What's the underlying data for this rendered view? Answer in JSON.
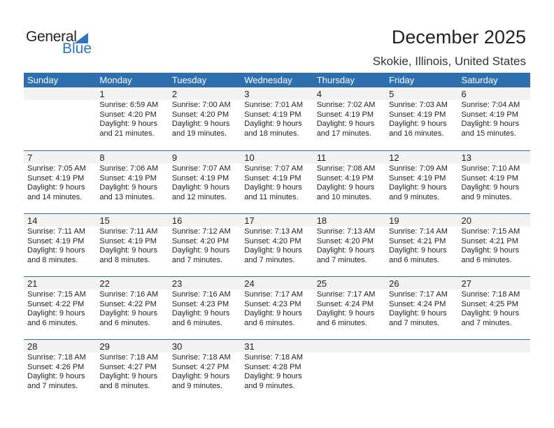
{
  "logo": {
    "text1": "General",
    "text2": "Blue",
    "color": "#2e75c4"
  },
  "title": "December 2025",
  "subtitle": "Skokie, Illinois, United States",
  "colors": {
    "header": "#2e6fb0",
    "band": "#f2f2f2"
  },
  "days_of_week": [
    "Sunday",
    "Monday",
    "Tuesday",
    "Wednesday",
    "Thursday",
    "Friday",
    "Saturday"
  ],
  "weeks": [
    [
      null,
      {
        "day": "1",
        "sunrise": "Sunrise: 6:59 AM",
        "sunset": "Sunset: 4:20 PM",
        "daylight": "Daylight: 9 hours",
        "minutes": "and 21 minutes."
      },
      {
        "day": "2",
        "sunrise": "Sunrise: 7:00 AM",
        "sunset": "Sunset: 4:20 PM",
        "daylight": "Daylight: 9 hours",
        "minutes": "and 19 minutes."
      },
      {
        "day": "3",
        "sunrise": "Sunrise: 7:01 AM",
        "sunset": "Sunset: 4:19 PM",
        "daylight": "Daylight: 9 hours",
        "minutes": "and 18 minutes."
      },
      {
        "day": "4",
        "sunrise": "Sunrise: 7:02 AM",
        "sunset": "Sunset: 4:19 PM",
        "daylight": "Daylight: 9 hours",
        "minutes": "and 17 minutes."
      },
      {
        "day": "5",
        "sunrise": "Sunrise: 7:03 AM",
        "sunset": "Sunset: 4:19 PM",
        "daylight": "Daylight: 9 hours",
        "minutes": "and 16 minutes."
      },
      {
        "day": "6",
        "sunrise": "Sunrise: 7:04 AM",
        "sunset": "Sunset: 4:19 PM",
        "daylight": "Daylight: 9 hours",
        "minutes": "and 15 minutes."
      }
    ],
    [
      {
        "day": "7",
        "sunrise": "Sunrise: 7:05 AM",
        "sunset": "Sunset: 4:19 PM",
        "daylight": "Daylight: 9 hours",
        "minutes": "and 14 minutes."
      },
      {
        "day": "8",
        "sunrise": "Sunrise: 7:06 AM",
        "sunset": "Sunset: 4:19 PM",
        "daylight": "Daylight: 9 hours",
        "minutes": "and 13 minutes."
      },
      {
        "day": "9",
        "sunrise": "Sunrise: 7:07 AM",
        "sunset": "Sunset: 4:19 PM",
        "daylight": "Daylight: 9 hours",
        "minutes": "and 12 minutes."
      },
      {
        "day": "10",
        "sunrise": "Sunrise: 7:07 AM",
        "sunset": "Sunset: 4:19 PM",
        "daylight": "Daylight: 9 hours",
        "minutes": "and 11 minutes."
      },
      {
        "day": "11",
        "sunrise": "Sunrise: 7:08 AM",
        "sunset": "Sunset: 4:19 PM",
        "daylight": "Daylight: 9 hours",
        "minutes": "and 10 minutes."
      },
      {
        "day": "12",
        "sunrise": "Sunrise: 7:09 AM",
        "sunset": "Sunset: 4:19 PM",
        "daylight": "Daylight: 9 hours",
        "minutes": "and 9 minutes."
      },
      {
        "day": "13",
        "sunrise": "Sunrise: 7:10 AM",
        "sunset": "Sunset: 4:19 PM",
        "daylight": "Daylight: 9 hours",
        "minutes": "and 9 minutes."
      }
    ],
    [
      {
        "day": "14",
        "sunrise": "Sunrise: 7:11 AM",
        "sunset": "Sunset: 4:19 PM",
        "daylight": "Daylight: 9 hours",
        "minutes": "and 8 minutes."
      },
      {
        "day": "15",
        "sunrise": "Sunrise: 7:11 AM",
        "sunset": "Sunset: 4:19 PM",
        "daylight": "Daylight: 9 hours",
        "minutes": "and 8 minutes."
      },
      {
        "day": "16",
        "sunrise": "Sunrise: 7:12 AM",
        "sunset": "Sunset: 4:20 PM",
        "daylight": "Daylight: 9 hours",
        "minutes": "and 7 minutes."
      },
      {
        "day": "17",
        "sunrise": "Sunrise: 7:13 AM",
        "sunset": "Sunset: 4:20 PM",
        "daylight": "Daylight: 9 hours",
        "minutes": "and 7 minutes."
      },
      {
        "day": "18",
        "sunrise": "Sunrise: 7:13 AM",
        "sunset": "Sunset: 4:20 PM",
        "daylight": "Daylight: 9 hours",
        "minutes": "and 7 minutes."
      },
      {
        "day": "19",
        "sunrise": "Sunrise: 7:14 AM",
        "sunset": "Sunset: 4:21 PM",
        "daylight": "Daylight: 9 hours",
        "minutes": "and 6 minutes."
      },
      {
        "day": "20",
        "sunrise": "Sunrise: 7:15 AM",
        "sunset": "Sunset: 4:21 PM",
        "daylight": "Daylight: 9 hours",
        "minutes": "and 6 minutes."
      }
    ],
    [
      {
        "day": "21",
        "sunrise": "Sunrise: 7:15 AM",
        "sunset": "Sunset: 4:22 PM",
        "daylight": "Daylight: 9 hours",
        "minutes": "and 6 minutes."
      },
      {
        "day": "22",
        "sunrise": "Sunrise: 7:16 AM",
        "sunset": "Sunset: 4:22 PM",
        "daylight": "Daylight: 9 hours",
        "minutes": "and 6 minutes."
      },
      {
        "day": "23",
        "sunrise": "Sunrise: 7:16 AM",
        "sunset": "Sunset: 4:23 PM",
        "daylight": "Daylight: 9 hours",
        "minutes": "and 6 minutes."
      },
      {
        "day": "24",
        "sunrise": "Sunrise: 7:17 AM",
        "sunset": "Sunset: 4:23 PM",
        "daylight": "Daylight: 9 hours",
        "minutes": "and 6 minutes."
      },
      {
        "day": "25",
        "sunrise": "Sunrise: 7:17 AM",
        "sunset": "Sunset: 4:24 PM",
        "daylight": "Daylight: 9 hours",
        "minutes": "and 6 minutes."
      },
      {
        "day": "26",
        "sunrise": "Sunrise: 7:17 AM",
        "sunset": "Sunset: 4:24 PM",
        "daylight": "Daylight: 9 hours",
        "minutes": "and 7 minutes."
      },
      {
        "day": "27",
        "sunrise": "Sunrise: 7:18 AM",
        "sunset": "Sunset: 4:25 PM",
        "daylight": "Daylight: 9 hours",
        "minutes": "and 7 minutes."
      }
    ],
    [
      {
        "day": "28",
        "sunrise": "Sunrise: 7:18 AM",
        "sunset": "Sunset: 4:26 PM",
        "daylight": "Daylight: 9 hours",
        "minutes": "and 7 minutes."
      },
      {
        "day": "29",
        "sunrise": "Sunrise: 7:18 AM",
        "sunset": "Sunset: 4:27 PM",
        "daylight": "Daylight: 9 hours",
        "minutes": "and 8 minutes."
      },
      {
        "day": "30",
        "sunrise": "Sunrise: 7:18 AM",
        "sunset": "Sunset: 4:27 PM",
        "daylight": "Daylight: 9 hours",
        "minutes": "and 9 minutes."
      },
      {
        "day": "31",
        "sunrise": "Sunrise: 7:18 AM",
        "sunset": "Sunset: 4:28 PM",
        "daylight": "Daylight: 9 hours",
        "minutes": "and 9 minutes."
      },
      null,
      null,
      null
    ]
  ]
}
